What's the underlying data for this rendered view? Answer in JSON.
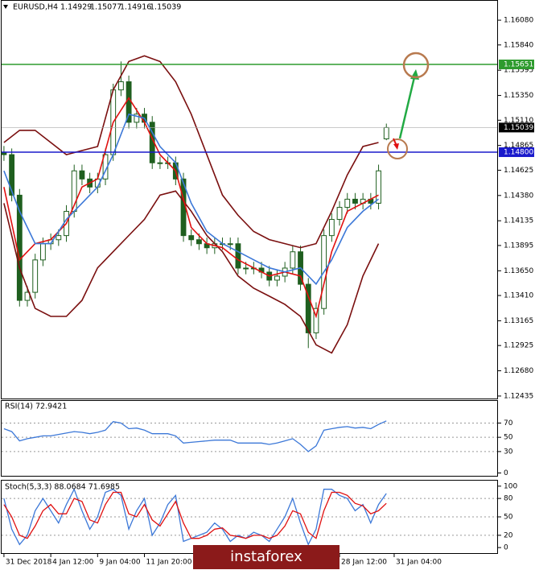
{
  "symbol": "EURUSD,H4",
  "watermark": "instaforex",
  "chart_data": [
    {
      "type": "candlestick",
      "color": "#1f5f1f",
      "open": [
        1.148,
        1.14776,
        1.14383,
        1.13363,
        1.13441,
        1.13755,
        1.13912,
        1.13951,
        1.13991,
        1.14226,
        1.14619,
        1.1454,
        1.14462,
        1.1454,
        1.14776,
        1.15404,
        1.15483,
        1.1509,
        1.15169,
        1.1509,
        1.14697,
        1.14697,
        1.14697,
        1.1454,
        1.13991,
        1.13951,
        1.13912,
        1.13873,
        1.13912,
        1.13912,
        1.13912,
        1.13676,
        1.13676,
        1.13676,
        1.13637,
        1.13559,
        1.13598,
        1.13676,
        1.13834,
        1.13519,
        1.13048,
        1.13284,
        1.13991,
        1.14148,
        1.14265,
        1.14344,
        1.14305,
        1.14344,
        1.14305,
        1.14929
      ],
      "high": [
        1.1486,
        1.14836,
        1.14443,
        1.13501,
        1.13815,
        1.13972,
        1.14011,
        1.14051,
        1.14286,
        1.14679,
        1.14679,
        1.146,
        1.146,
        1.14836,
        1.15464,
        1.1568,
        1.15543,
        1.15229,
        1.15229,
        1.1515,
        1.14757,
        1.14757,
        1.14757,
        1.146,
        1.14051,
        1.14011,
        1.13972,
        1.13972,
        1.13972,
        1.13972,
        1.13972,
        1.13736,
        1.13736,
        1.13736,
        1.13697,
        1.13658,
        1.13736,
        1.13894,
        1.13894,
        1.13579,
        1.13344,
        1.14051,
        1.14208,
        1.14325,
        1.14404,
        1.14404,
        1.14404,
        1.14404,
        1.14679,
        1.15077
      ],
      "low": [
        1.14716,
        1.14323,
        1.13303,
        1.13303,
        1.13381,
        1.13695,
        1.13852,
        1.13891,
        1.13931,
        1.14166,
        1.1448,
        1.14402,
        1.14402,
        1.1448,
        1.14716,
        1.15344,
        1.1503,
        1.1503,
        1.1503,
        1.14637,
        1.14637,
        1.14637,
        1.1448,
        1.13931,
        1.13891,
        1.13852,
        1.13813,
        1.13813,
        1.13852,
        1.13852,
        1.13616,
        1.13616,
        1.13616,
        1.13577,
        1.13499,
        1.13499,
        1.13538,
        1.13616,
        1.13459,
        1.129,
        1.12988,
        1.13224,
        1.13931,
        1.14088,
        1.14205,
        1.14245,
        1.14245,
        1.14245,
        1.14245,
        1.14916
      ],
      "close": [
        1.14776,
        1.14383,
        1.13363,
        1.13441,
        1.13755,
        1.13912,
        1.13951,
        1.13991,
        1.14226,
        1.14619,
        1.1454,
        1.14462,
        1.1454,
        1.14776,
        1.15404,
        1.15483,
        1.1509,
        1.15169,
        1.1509,
        1.14697,
        1.14697,
        1.14697,
        1.1454,
        1.13991,
        1.13951,
        1.13912,
        1.13873,
        1.13912,
        1.13912,
        1.13912,
        1.13676,
        1.13676,
        1.13676,
        1.13637,
        1.13559,
        1.13598,
        1.13676,
        1.13834,
        1.13519,
        1.13048,
        1.13284,
        1.13991,
        1.14148,
        1.14265,
        1.14344,
        1.14305,
        1.14344,
        1.14305,
        1.14619,
        1.15039
      ],
      "lines": [
        {
          "color": "#7a0f0f",
          "x": [
            0,
            2,
            4,
            6,
            8,
            10,
            12,
            14,
            16,
            18,
            20,
            22,
            24,
            26,
            28,
            30,
            32,
            34,
            36,
            38,
            40,
            42,
            44,
            46,
            48
          ],
          "values": [
            1.14894,
            1.15012,
            1.15012,
            1.14894,
            1.14776,
            1.14816,
            1.14855,
            1.15404,
            1.15679,
            1.15734,
            1.15679,
            1.15483,
            1.15169,
            1.14776,
            1.14384,
            1.14188,
            1.14031,
            1.13952,
            1.13913,
            1.13874,
            1.13913,
            1.14227,
            1.1458,
            1.14855,
            1.14894
          ]
        },
        {
          "color": "#7a0f0f",
          "x": [
            0,
            2,
            4,
            6,
            8,
            10,
            12,
            14,
            16,
            18,
            20,
            22,
            24,
            26,
            28,
            30,
            32,
            34,
            36,
            38,
            40,
            42,
            44,
            46,
            48
          ],
          "values": [
            1.14305,
            1.13678,
            1.13285,
            1.13207,
            1.13207,
            1.13363,
            1.13678,
            1.13835,
            1.13992,
            1.14148,
            1.14384,
            1.14423,
            1.14227,
            1.13992,
            1.13835,
            1.13599,
            1.13481,
            1.13403,
            1.13324,
            1.13207,
            1.12932,
            1.12853,
            1.13128,
            1.13599,
            1.13913
          ]
        },
        {
          "color": "#e01010",
          "x": [
            0,
            2,
            4,
            6,
            8,
            10,
            12,
            14,
            16,
            18,
            20,
            22,
            24,
            26,
            28,
            30,
            32,
            34,
            36,
            38,
            40,
            42,
            44,
            46,
            48
          ],
          "values": [
            1.14462,
            1.13756,
            1.13913,
            1.13952,
            1.14109,
            1.14462,
            1.14541,
            1.1509,
            1.15326,
            1.1509,
            1.14776,
            1.14619,
            1.1407,
            1.13913,
            1.13874,
            1.13756,
            1.13678,
            1.13599,
            1.13638,
            1.13599,
            1.13207,
            1.13835,
            1.14227,
            1.14305,
            1.14384
          ]
        },
        {
          "color": "#3c78d8",
          "x": [
            0,
            2,
            4,
            6,
            8,
            10,
            12,
            14,
            16,
            18,
            20,
            22,
            24,
            26,
            28,
            30,
            32,
            34,
            36,
            38,
            40,
            42,
            44,
            46,
            48
          ],
          "values": [
            1.14619,
            1.14227,
            1.13913,
            1.13913,
            1.14148,
            1.14305,
            1.14462,
            1.14776,
            1.15169,
            1.1513,
            1.14855,
            1.14698,
            1.14305,
            1.14031,
            1.13913,
            1.13835,
            1.13756,
            1.13678,
            1.13638,
            1.13678,
            1.13521,
            1.13756,
            1.1407,
            1.14227,
            1.14345
          ]
        }
      ],
      "hlines": [
        {
          "value": 1.15651,
          "color": "#2e9b2e"
        },
        {
          "value": 1.148,
          "label": "1.14800",
          "color": "#1a1acc"
        }
      ],
      "ylim": [
        1.12411,
        1.16268
      ],
      "yticks": [
        {
          "value": 1.1608,
          "label": "1.16080"
        },
        {
          "value": 1.1584,
          "label": "1.15840"
        },
        1.15595,
        {
          "value": 1.1535,
          "label": "1.15350"
        },
        {
          "value": 1.1511,
          "label": "1.15110"
        },
        1.14865,
        1.14625,
        {
          "value": 1.1438,
          "label": "1.14380"
        },
        1.14135,
        1.13895,
        {
          "value": 1.1365,
          "label": "1.13650"
        },
        {
          "value": 1.1341,
          "label": "1.13410"
        },
        1.13165,
        1.12925,
        {
          "value": 1.1268,
          "label": "1.12680"
        },
        1.12435
      ]
    },
    {
      "type": "line",
      "title": "RSI(14) 72.9421",
      "grid": true,
      "series": [
        {
          "color": "#3c78d8",
          "values": [
            62,
            58,
            45,
            48,
            50,
            52,
            52,
            54,
            56,
            58,
            57,
            55,
            57,
            60,
            72,
            70,
            62,
            63,
            60,
            55,
            55,
            55,
            52,
            42,
            43,
            44,
            45,
            46,
            46,
            46,
            42,
            42,
            42,
            42,
            40,
            42,
            45,
            48,
            40,
            30,
            38,
            60,
            62,
            64,
            65,
            63,
            64,
            62,
            68,
            73
          ]
        }
      ],
      "ylim": [
        -4,
        101
      ],
      "yticks": [
        0,
        30,
        50,
        70
      ]
    },
    {
      "type": "line",
      "title": "Stoch(5,3,3) 88.0684 71.6985",
      "grid": true,
      "series": [
        {
          "color": "#3c78d8",
          "values": [
            80,
            30,
            5,
            20,
            60,
            80,
            60,
            40,
            70,
            95,
            60,
            30,
            50,
            90,
            95,
            85,
            30,
            60,
            80,
            20,
            40,
            70,
            85,
            10,
            15,
            20,
            25,
            40,
            30,
            10,
            20,
            15,
            25,
            20,
            10,
            30,
            50,
            80,
            40,
            5,
            30,
            95,
            95,
            85,
            80,
            60,
            70,
            40,
            70,
            88
          ]
        },
        {
          "color": "#e01010",
          "values": [
            70,
            50,
            20,
            15,
            35,
            60,
            70,
            55,
            55,
            80,
            75,
            45,
            40,
            70,
            90,
            90,
            55,
            50,
            70,
            45,
            35,
            55,
            75,
            40,
            15,
            15,
            20,
            30,
            32,
            20,
            18,
            15,
            20,
            20,
            15,
            20,
            35,
            60,
            55,
            25,
            15,
            60,
            90,
            90,
            85,
            72,
            68,
            55,
            60,
            72
          ]
        }
      ],
      "ylim": [
        -9,
        109
      ],
      "yticks": [
        0,
        20,
        50,
        80,
        100
      ],
      "xlim": [
        -0.3,
        63.2
      ],
      "xticks": [
        {
          "value": 0,
          "label": "31 Dec 2018"
        },
        {
          "value": 6,
          "label": "4 Jan 12:00"
        },
        {
          "value": 12,
          "label": "9 Jan 04:00"
        },
        {
          "value": 18,
          "label": "11 Jan 20:00"
        },
        {
          "value": 43,
          "label": "28 Jan 12:00"
        },
        {
          "value": 50,
          "label": "31 Jan 04:00"
        }
      ]
    }
  ]
}
